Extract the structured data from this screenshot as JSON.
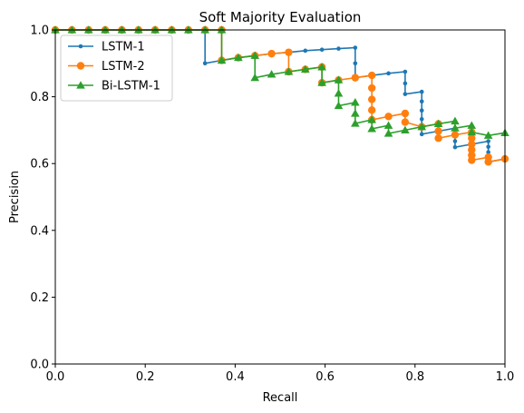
{
  "chart_data": {
    "type": "line",
    "title": "Soft Majority Evaluation",
    "xlabel": "Recall",
    "ylabel": "Precision",
    "xlim": [
      0.0,
      1.0
    ],
    "ylim": [
      0.0,
      1.0
    ],
    "xticks": [
      "0.0",
      "0.2",
      "0.4",
      "0.6",
      "0.8",
      "1.0"
    ],
    "yticks": [
      "0.0",
      "0.2",
      "0.4",
      "0.6",
      "0.8",
      "1.0"
    ],
    "grid": false,
    "legend_position": "top-left",
    "series": [
      {
        "name": "LSTM-1",
        "color": "#1f77b4",
        "marker": "dot",
        "points": [
          [
            0.0,
            1.0
          ],
          [
            0.037,
            1.0
          ],
          [
            0.074,
            1.0
          ],
          [
            0.111,
            1.0
          ],
          [
            0.148,
            1.0
          ],
          [
            0.185,
            1.0
          ],
          [
            0.222,
            1.0
          ],
          [
            0.259,
            1.0
          ],
          [
            0.296,
            1.0
          ],
          [
            0.333,
            1.0
          ],
          [
            0.333,
            0.9
          ],
          [
            0.37,
            0.909
          ],
          [
            0.407,
            0.917
          ],
          [
            0.444,
            0.923
          ],
          [
            0.481,
            0.929
          ],
          [
            0.519,
            0.933
          ],
          [
            0.556,
            0.938
          ],
          [
            0.593,
            0.941
          ],
          [
            0.63,
            0.944
          ],
          [
            0.667,
            0.947
          ],
          [
            0.667,
            0.9
          ],
          [
            0.667,
            0.857
          ],
          [
            0.704,
            0.864
          ],
          [
            0.741,
            0.87
          ],
          [
            0.778,
            0.875
          ],
          [
            0.778,
            0.84
          ],
          [
            0.778,
            0.808
          ],
          [
            0.815,
            0.815
          ],
          [
            0.815,
            0.786
          ],
          [
            0.815,
            0.759
          ],
          [
            0.815,
            0.733
          ],
          [
            0.815,
            0.71
          ],
          [
            0.815,
            0.688
          ],
          [
            0.852,
            0.697
          ],
          [
            0.889,
            0.706
          ],
          [
            0.889,
            0.686
          ],
          [
            0.889,
            0.667
          ],
          [
            0.889,
            0.649
          ],
          [
            0.926,
            0.658
          ],
          [
            0.963,
            0.667
          ],
          [
            0.963,
            0.65
          ],
          [
            0.963,
            0.634
          ],
          [
            0.963,
            0.619
          ],
          [
            0.963,
            0.605
          ],
          [
            1.0,
            0.614
          ]
        ]
      },
      {
        "name": "LSTM-2",
        "color": "#ff7f0e",
        "marker": "circle",
        "points": [
          [
            0.0,
            1.0
          ],
          [
            0.037,
            1.0
          ],
          [
            0.074,
            1.0
          ],
          [
            0.111,
            1.0
          ],
          [
            0.148,
            1.0
          ],
          [
            0.185,
            1.0
          ],
          [
            0.222,
            1.0
          ],
          [
            0.259,
            1.0
          ],
          [
            0.296,
            1.0
          ],
          [
            0.333,
            1.0
          ],
          [
            0.37,
            1.0
          ],
          [
            0.37,
            0.909
          ],
          [
            0.407,
            0.917
          ],
          [
            0.444,
            0.923
          ],
          [
            0.481,
            0.929
          ],
          [
            0.519,
            0.933
          ],
          [
            0.519,
            0.875
          ],
          [
            0.556,
            0.882
          ],
          [
            0.593,
            0.889
          ],
          [
            0.593,
            0.842
          ],
          [
            0.63,
            0.85
          ],
          [
            0.667,
            0.857
          ],
          [
            0.704,
            0.864
          ],
          [
            0.704,
            0.826
          ],
          [
            0.704,
            0.792
          ],
          [
            0.704,
            0.76
          ],
          [
            0.704,
            0.731
          ],
          [
            0.741,
            0.741
          ],
          [
            0.778,
            0.75
          ],
          [
            0.778,
            0.724
          ],
          [
            0.815,
            0.71
          ],
          [
            0.852,
            0.719
          ],
          [
            0.852,
            0.697
          ],
          [
            0.852,
            0.676
          ],
          [
            0.889,
            0.686
          ],
          [
            0.926,
            0.694
          ],
          [
            0.926,
            0.676
          ],
          [
            0.926,
            0.658
          ],
          [
            0.926,
            0.641
          ],
          [
            0.926,
            0.625
          ],
          [
            0.926,
            0.61
          ],
          [
            0.963,
            0.619
          ],
          [
            0.963,
            0.605
          ],
          [
            1.0,
            0.614
          ]
        ]
      },
      {
        "name": "Bi-LSTM-1",
        "color": "#2ca02c",
        "marker": "triangle",
        "points": [
          [
            0.0,
            1.0
          ],
          [
            0.037,
            1.0
          ],
          [
            0.074,
            1.0
          ],
          [
            0.111,
            1.0
          ],
          [
            0.148,
            1.0
          ],
          [
            0.185,
            1.0
          ],
          [
            0.222,
            1.0
          ],
          [
            0.259,
            1.0
          ],
          [
            0.296,
            1.0
          ],
          [
            0.333,
            1.0
          ],
          [
            0.37,
            1.0
          ],
          [
            0.37,
            0.909
          ],
          [
            0.407,
            0.917
          ],
          [
            0.444,
            0.923
          ],
          [
            0.444,
            0.857
          ],
          [
            0.481,
            0.867
          ],
          [
            0.519,
            0.875
          ],
          [
            0.556,
            0.882
          ],
          [
            0.593,
            0.889
          ],
          [
            0.593,
            0.842
          ],
          [
            0.63,
            0.85
          ],
          [
            0.63,
            0.81
          ],
          [
            0.63,
            0.773
          ],
          [
            0.667,
            0.783
          ],
          [
            0.667,
            0.75
          ],
          [
            0.667,
            0.72
          ],
          [
            0.704,
            0.731
          ],
          [
            0.704,
            0.704
          ],
          [
            0.741,
            0.714
          ],
          [
            0.741,
            0.69
          ],
          [
            0.778,
            0.7
          ],
          [
            0.815,
            0.71
          ],
          [
            0.852,
            0.719
          ],
          [
            0.889,
            0.727
          ],
          [
            0.889,
            0.706
          ],
          [
            0.926,
            0.714
          ],
          [
            0.926,
            0.694
          ],
          [
            0.963,
            0.684
          ],
          [
            1.0,
            0.692
          ]
        ]
      }
    ]
  }
}
